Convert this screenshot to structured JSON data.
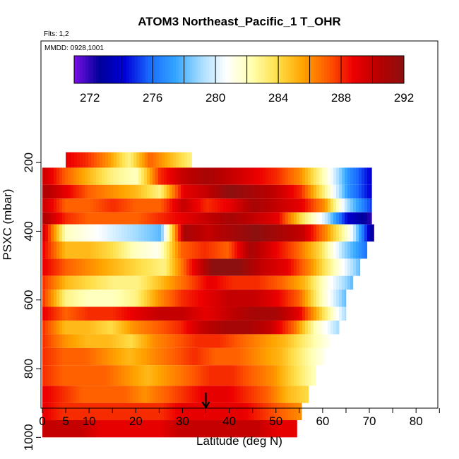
{
  "chart_data": {
    "type": "heatmap",
    "title": "ATOM3 Northeast_Pacific_1 T_OHR",
    "flights_label": "Flts: 1,2",
    "dates_label": "MMDD: 0928,1001",
    "xlabel": "Latitude (deg N)",
    "ylabel": "PSXC (mbar)",
    "xlim": [
      0,
      85
    ],
    "ylim": [
      1000,
      100
    ],
    "x_ticks": [
      0,
      5,
      10,
      20,
      30,
      40,
      50,
      60,
      70,
      80
    ],
    "x_tick_labels": [
      "0",
      "5",
      "10",
      "20",
      "30",
      "40",
      "50",
      "60",
      "70",
      "80"
    ],
    "x_minor_ticks": [
      15,
      25,
      35,
      45,
      55,
      65,
      75,
      85
    ],
    "y_ticks": [
      200,
      400,
      600,
      800,
      1000
    ],
    "y_tick_labels": [
      "200",
      "400",
      "600",
      "800",
      "1000"
    ],
    "colorbar": {
      "min": 271,
      "max": 292,
      "ticks": [
        272,
        276,
        280,
        284,
        288,
        292
      ],
      "tick_labels": [
        "272",
        "276",
        "280",
        "284",
        "288",
        "292"
      ],
      "dividers": [
        274,
        276,
        278,
        280,
        282,
        284,
        286,
        288,
        290,
        292
      ],
      "colors": [
        "#7a10e6",
        "#00009a",
        "#0000d8",
        "#1a6cff",
        "#33a6ff",
        "#a6dcff",
        "#ffffff",
        "#ffffb0",
        "#ffe04a",
        "#ffa500",
        "#ff5a00",
        "#ee0000",
        "#b80000",
        "#8c1010"
      ]
    },
    "arrow_latitude": 35,
    "bands": [
      {
        "p": [
          170,
          215
        ],
        "lat": [
          5,
          32
        ],
        "vals": [
          289,
          288,
          286,
          283,
          287,
          285,
          283
        ]
      },
      {
        "p": [
          215,
          265
        ],
        "lat": [
          0,
          70.5
        ],
        "vals": [
          290,
          287,
          285,
          283,
          282,
          288,
          290,
          291,
          290,
          289,
          288,
          286,
          282,
          277,
          274
        ]
      },
      {
        "p": [
          265,
          305
        ],
        "lat": [
          0,
          70.5
        ],
        "vals": [
          291,
          289,
          287,
          286,
          285,
          283,
          289,
          290,
          292,
          291,
          290,
          288,
          283,
          277,
          274
        ]
      },
      {
        "p": [
          305,
          345
        ],
        "lat": [
          0,
          70.5
        ],
        "vals": [
          290,
          287,
          287,
          288,
          287,
          287,
          290,
          288,
          289,
          291,
          290,
          289,
          286,
          279,
          275
        ]
      },
      {
        "p": [
          345,
          380
        ],
        "lat": [
          0,
          70.5
        ],
        "vals": [
          291,
          288,
          287,
          287,
          287,
          288,
          289,
          290,
          291,
          290,
          289,
          284,
          280,
          274,
          272
        ]
      },
      {
        "p": [
          380,
          430
        ],
        "lat": [
          0,
          71
        ],
        "vals": [
          290,
          282,
          281,
          280,
          279,
          278,
          291,
          290,
          291,
          292,
          291,
          290,
          286,
          281,
          272
        ]
      },
      {
        "p": [
          430,
          480
        ],
        "lat": [
          0,
          69.5
        ],
        "vals": [
          289,
          285,
          285,
          284,
          282,
          281,
          287,
          288,
          287,
          291,
          289,
          287,
          284,
          279,
          276
        ]
      },
      {
        "p": [
          480,
          530
        ],
        "lat": [
          0,
          68
        ],
        "vals": [
          289,
          287,
          286,
          285,
          284,
          283,
          288,
          292,
          292,
          290,
          289,
          286,
          282,
          278
        ]
      },
      {
        "p": [
          530,
          570
        ],
        "lat": [
          0,
          66.5
        ],
        "vals": [
          288,
          285,
          284,
          283,
          283,
          285,
          287,
          289,
          288,
          288,
          287,
          285,
          281,
          278
        ]
      },
      {
        "p": [
          570,
          620
        ],
        "lat": [
          0,
          65
        ],
        "vals": [
          288,
          283,
          282,
          282,
          283,
          286,
          288,
          289,
          290,
          290,
          289,
          287,
          282,
          278
        ]
      },
      {
        "p": [
          620,
          660
        ],
        "lat": [
          0,
          65
        ],
        "vals": [
          289,
          287,
          288,
          288,
          289,
          290,
          290,
          289,
          290,
          291,
          291,
          289,
          284,
          279
        ]
      },
      {
        "p": [
          660,
          700
        ],
        "lat": [
          0,
          63.5
        ],
        "vals": [
          288,
          285,
          285,
          284,
          286,
          287,
          288,
          290,
          291,
          291,
          290,
          287,
          282,
          279
        ]
      },
      {
        "p": [
          700,
          740
        ],
        "lat": [
          0,
          61.5
        ],
        "vals": [
          288,
          286,
          285,
          285,
          284,
          286,
          287,
          288,
          288,
          287,
          286,
          285,
          283,
          281
        ]
      },
      {
        "p": [
          740,
          790
        ],
        "lat": [
          0,
          60.5
        ],
        "vals": [
          288,
          287,
          287,
          286,
          285,
          286,
          287,
          288,
          287,
          287,
          286,
          285,
          283,
          281
        ]
      },
      {
        "p": [
          790,
          850
        ],
        "lat": [
          0,
          58.5
        ],
        "vals": [
          288,
          287,
          287,
          287,
          286,
          285,
          286,
          287,
          288,
          288,
          287,
          286,
          284,
          282
        ]
      },
      {
        "p": [
          850,
          900
        ],
        "lat": [
          0,
          57
        ],
        "vals": [
          289,
          288,
          287,
          287,
          287,
          286,
          287,
          288,
          289,
          289,
          288,
          287,
          285,
          284
        ]
      },
      {
        "p": [
          900,
          950
        ],
        "lat": [
          0,
          55.5
        ],
        "vals": [
          289,
          288,
          288,
          288,
          288,
          288,
          288,
          289,
          289,
          289,
          289,
          288,
          287,
          286
        ]
      },
      {
        "p": [
          950,
          1000
        ],
        "lat": [
          0,
          54.5
        ],
        "vals": [
          290,
          290,
          290,
          289,
          289,
          289,
          289,
          290,
          290,
          290,
          290,
          290,
          289,
          289
        ]
      }
    ]
  }
}
